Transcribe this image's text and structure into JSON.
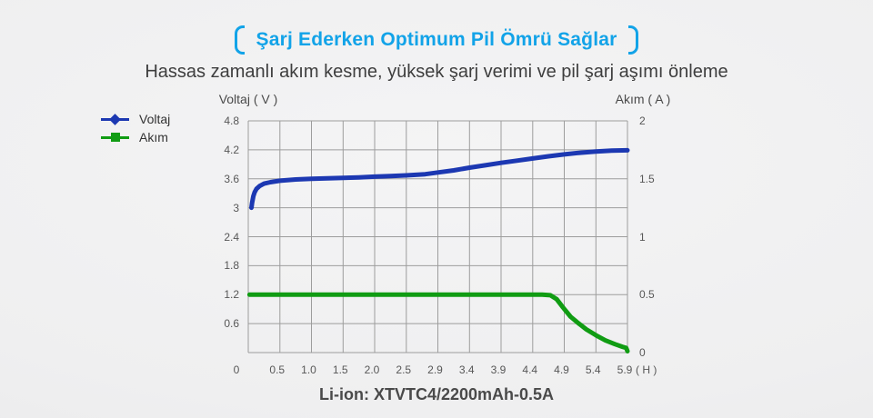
{
  "header": {
    "title": "Şarj Ederken Optimum Pil Ömrü Sağlar",
    "subtitle": "Hassas zamanlı akım kesme, yüksek şarj verimi ve pil şarj aşımı önleme",
    "accent_color": "#12a3e8"
  },
  "legend": {
    "items": [
      {
        "label": "Voltaj",
        "color": "#1c38b2",
        "marker": "diamond"
      },
      {
        "label": "Akım",
        "color": "#109c13",
        "marker": "square"
      }
    ]
  },
  "chart_data": {
    "type": "line",
    "title": "",
    "grid": true,
    "grid_color": "#9d9d9d",
    "left_axis": {
      "label": "Voltaj ( V )",
      "ticks": [
        4.8,
        4.2,
        3.6,
        3,
        2.4,
        1.8,
        1.2,
        0.6
      ],
      "range": [
        0,
        4.8
      ]
    },
    "right_axis": {
      "label": "Akım ( A )",
      "ticks": [
        2,
        1.5,
        1,
        0.5,
        0
      ],
      "range": [
        0,
        2
      ]
    },
    "x_axis": {
      "tick_labels": [
        "0",
        "0.5",
        "1.0",
        "1.5",
        "2.0",
        "2.5",
        "2.9",
        "3.4",
        "3.9",
        "4.4",
        "4.9",
        "5.4",
        "5.9"
      ],
      "unit": "( H )"
    },
    "series": [
      {
        "name": "Voltaj",
        "axis": "left",
        "color": "#1c38b2",
        "points": [
          [
            0.05,
            3.0
          ],
          [
            0.06,
            3.1
          ],
          [
            0.08,
            3.24
          ],
          [
            0.1,
            3.32
          ],
          [
            0.13,
            3.39
          ],
          [
            0.18,
            3.45
          ],
          [
            0.25,
            3.5
          ],
          [
            0.35,
            3.53
          ],
          [
            0.5,
            3.56
          ],
          [
            0.75,
            3.585
          ],
          [
            1.0,
            3.6
          ],
          [
            1.25,
            3.61
          ],
          [
            1.5,
            3.62
          ],
          [
            1.75,
            3.63
          ],
          [
            2.0,
            3.645
          ],
          [
            2.25,
            3.655
          ],
          [
            2.5,
            3.67
          ],
          [
            2.7,
            3.695
          ],
          [
            2.9,
            3.73
          ],
          [
            3.15,
            3.775
          ],
          [
            3.4,
            3.83
          ],
          [
            3.65,
            3.88
          ],
          [
            3.9,
            3.93
          ],
          [
            4.15,
            3.975
          ],
          [
            4.4,
            4.02
          ],
          [
            4.65,
            4.065
          ],
          [
            4.9,
            4.105
          ],
          [
            5.15,
            4.14
          ],
          [
            5.4,
            4.165
          ],
          [
            5.65,
            4.182
          ],
          [
            5.9,
            4.19
          ]
        ]
      },
      {
        "name": "Akım",
        "axis": "right",
        "color": "#109c13",
        "points": [
          [
            0.02,
            0.5
          ],
          [
            1.0,
            0.5
          ],
          [
            2.0,
            0.5
          ],
          [
            3.0,
            0.5
          ],
          [
            4.0,
            0.5
          ],
          [
            4.55,
            0.5
          ],
          [
            4.68,
            0.495
          ],
          [
            4.78,
            0.46
          ],
          [
            4.88,
            0.39
          ],
          [
            5.0,
            0.31
          ],
          [
            5.12,
            0.255
          ],
          [
            5.25,
            0.2
          ],
          [
            5.4,
            0.15
          ],
          [
            5.55,
            0.105
          ],
          [
            5.7,
            0.073
          ],
          [
            5.82,
            0.05
          ],
          [
            5.88,
            0.04
          ],
          [
            5.9,
            0.012
          ]
        ]
      }
    ]
  },
  "footer": {
    "caption": "Li-ion: XTVTC4/2200mAh-0.5A"
  }
}
